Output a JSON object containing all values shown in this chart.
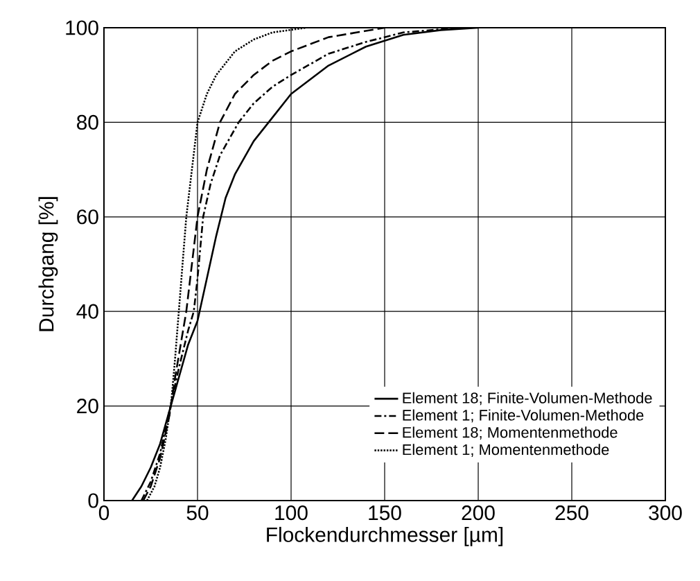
{
  "chart_data": {
    "type": "line",
    "xlabel": "Flockendurchmesser [µm]",
    "ylabel": "Durchgang [%]",
    "xlim": [
      0,
      300
    ],
    "ylim": [
      0,
      100
    ],
    "xticks": [
      0,
      50,
      100,
      150,
      200,
      250,
      300
    ],
    "yticks": [
      0,
      20,
      40,
      60,
      80,
      100
    ],
    "grid": true,
    "legend": "bottom right",
    "marker": "none",
    "series": [
      {
        "name": "Element 18; Finite-Volumen-Methode",
        "color": "#000000",
        "line_style": "solid",
        "x": [
          15,
          20,
          25,
          30,
          35,
          40,
          45,
          50,
          55,
          60,
          65,
          70,
          80,
          90,
          100,
          110,
          120,
          140,
          160,
          180,
          200
        ],
        "values": [
          0,
          3,
          7,
          12,
          19,
          26,
          33,
          38,
          47,
          56,
          64,
          69,
          76,
          81,
          86,
          89,
          92,
          96,
          98.5,
          99.5,
          100
        ]
      },
      {
        "name": "Element 1; Finite-Volumen-Methode",
        "color": "#000000",
        "line_style": "dashdot",
        "x": [
          20,
          25,
          30,
          35,
          40,
          45,
          48,
          50,
          53,
          57,
          62,
          72,
          80,
          90,
          100,
          120,
          140,
          160,
          190
        ],
        "values": [
          0,
          4,
          10,
          19,
          28,
          36,
          40,
          47,
          60,
          67,
          73,
          80,
          84,
          87.5,
          90,
          94.5,
          97,
          99,
          100
        ]
      },
      {
        "name": "Element 18; Momentenmethode",
        "color": "#000000",
        "line_style": "dashed",
        "x": [
          21,
          25,
          30,
          35,
          38,
          41,
          44,
          47,
          50,
          55,
          62,
          70,
          80,
          90,
          100,
          120,
          150
        ],
        "values": [
          0,
          3,
          9,
          18,
          26,
          33,
          40,
          50,
          60,
          70,
          80,
          86,
          90,
          93,
          95,
          98,
          100
        ]
      },
      {
        "name": "Element 1; Momentenmethode",
        "color": "#000000",
        "line_style": "dotted",
        "x": [
          23,
          27,
          30,
          33,
          36,
          38,
          40,
          42,
          44,
          47,
          50,
          55,
          60,
          70,
          80,
          90,
          108
        ],
        "values": [
          0,
          3,
          7,
          13,
          21,
          30,
          40,
          50,
          60,
          70,
          80,
          86,
          90,
          95,
          97.5,
          99,
          100
        ]
      }
    ]
  }
}
